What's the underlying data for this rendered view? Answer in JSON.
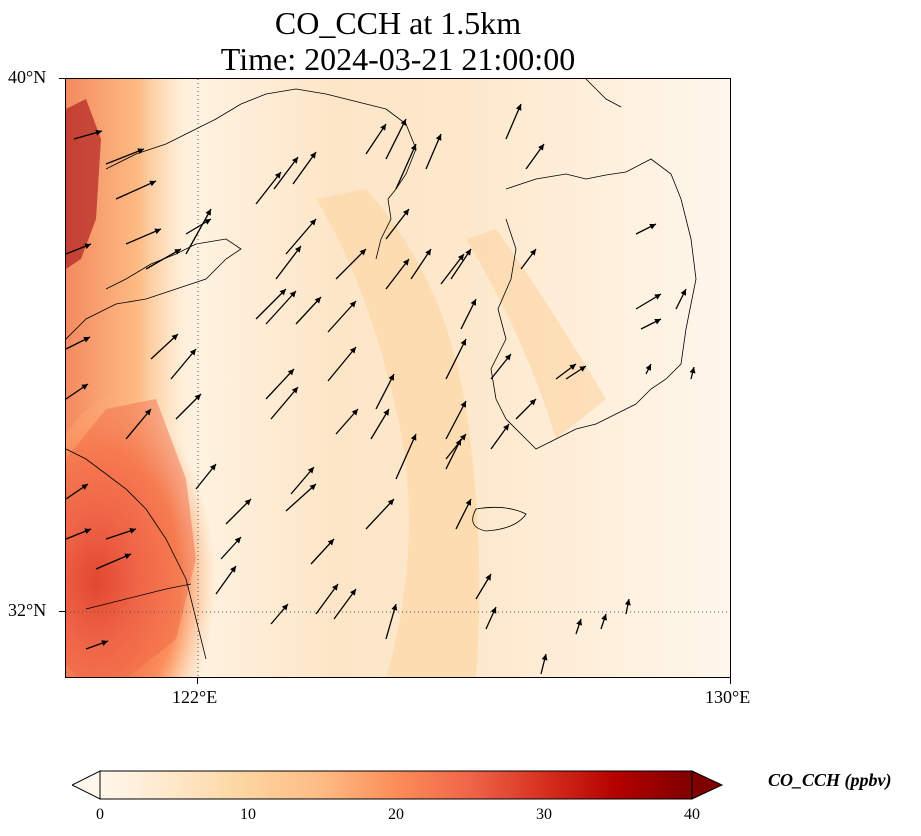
{
  "title_line1": "CO_CCH at 1.5km",
  "title_line2": "Time: 2024-03-21 21:00:00",
  "map": {
    "lon_range": [
      120.4,
      130
    ],
    "lat_range": [
      31.0,
      40
    ],
    "lat_ticks": [
      "40°N",
      "32°N"
    ],
    "lon_ticks": [
      "122°E",
      "130°E"
    ],
    "gridline_style": "dotted"
  },
  "colorbar": {
    "label": "CO_CCH (ppbv)",
    "ticks": [
      "0",
      "10",
      "20",
      "30",
      "40"
    ],
    "range": [
      0,
      40
    ],
    "colormap": "OrRd",
    "extend": "both"
  },
  "colors": {
    "low": "#fff7ec",
    "mid": "#fdd49e",
    "high": "#ef6548",
    "max": "#7f0000"
  }
}
